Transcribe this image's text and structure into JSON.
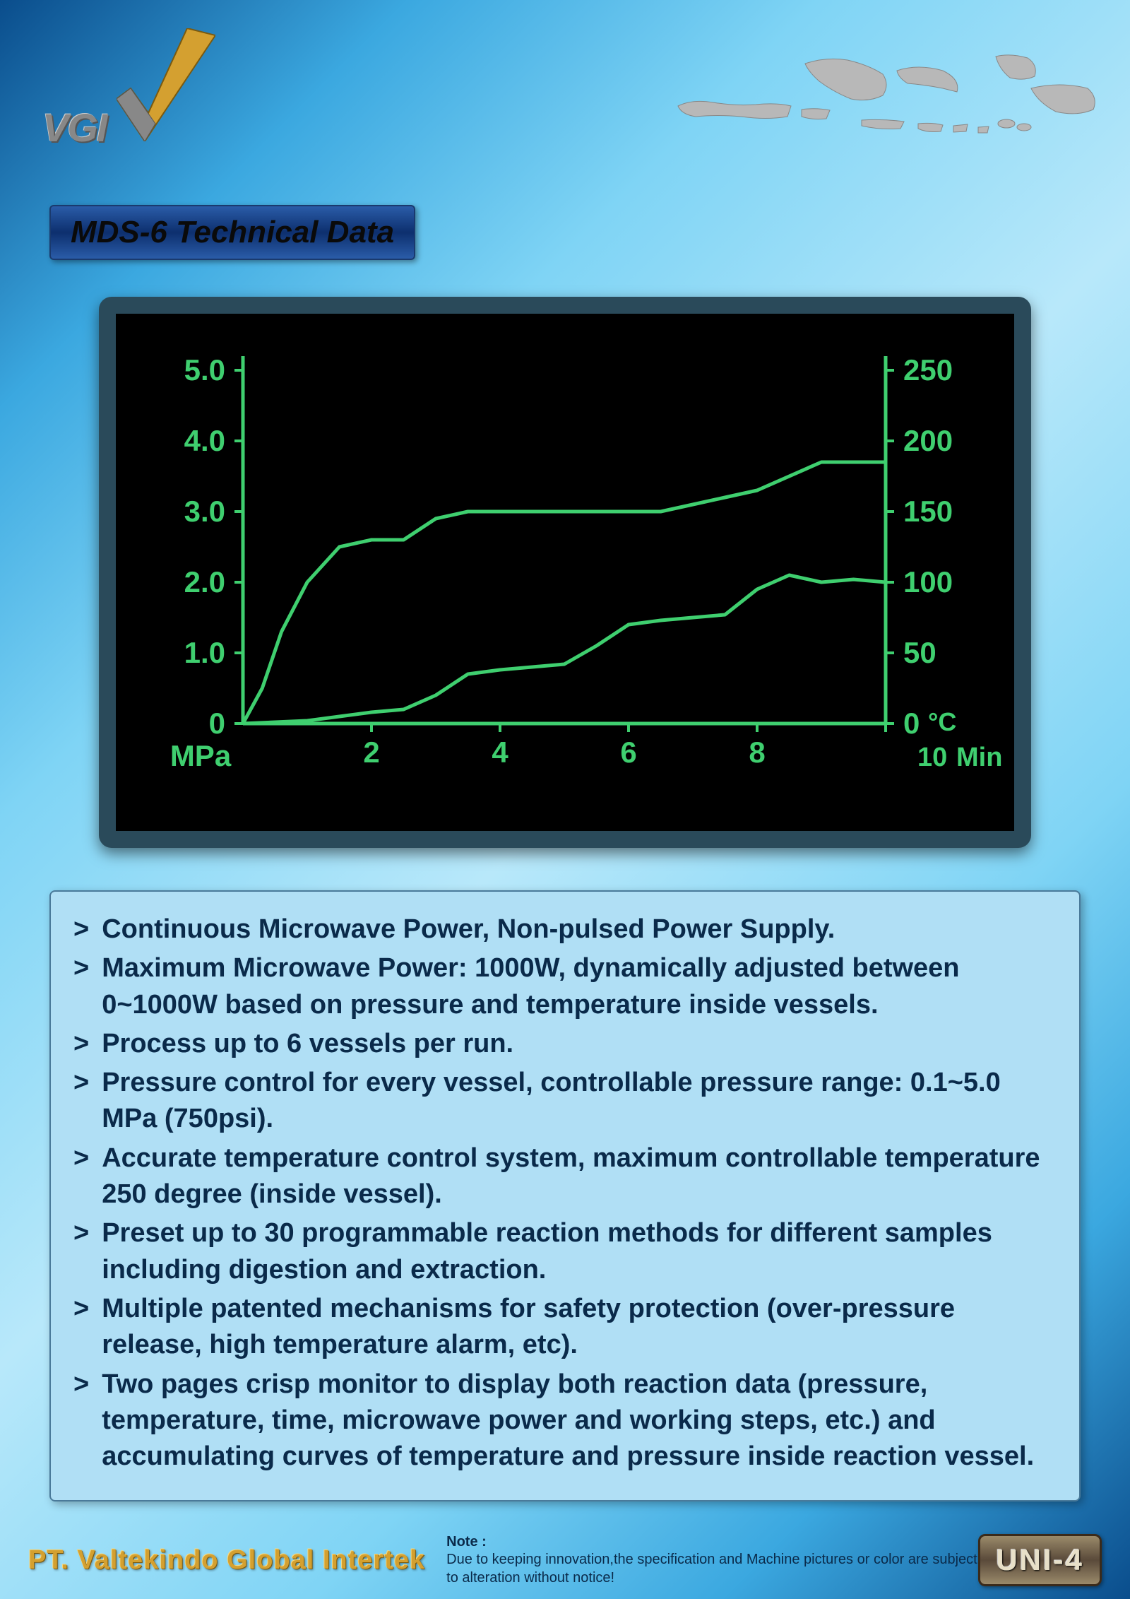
{
  "logo": {
    "text": "VGI"
  },
  "title": "MDS-6 Technical Data",
  "chart": {
    "type": "line",
    "background_color": "#000000",
    "line_color": "#3fcf6f",
    "axis_color": "#3fcf6f",
    "text_color": "#3fcf6f",
    "left_axis": {
      "label": "MPa",
      "ticks": [
        "5.0",
        "4.0",
        "3.0",
        "2.0",
        "1.0",
        "0"
      ]
    },
    "right_axis": {
      "label": "°C",
      "ticks": [
        "250",
        "200",
        "150",
        "100",
        "50",
        "0"
      ]
    },
    "x_axis": {
      "label": "Min",
      "ticks": [
        "2",
        "4",
        "6",
        "8",
        "10"
      ],
      "xlim": [
        0,
        10
      ]
    },
    "ylim_left": [
      0,
      5.0
    ],
    "ylim_right": [
      0,
      250
    ],
    "series": [
      {
        "name": "pressure_mpa",
        "points": [
          [
            0,
            0
          ],
          [
            0.3,
            0.5
          ],
          [
            0.6,
            1.3
          ],
          [
            1.0,
            2.0
          ],
          [
            1.5,
            2.5
          ],
          [
            2.0,
            2.6
          ],
          [
            2.5,
            2.6
          ],
          [
            3.0,
            2.9
          ],
          [
            3.5,
            3.0
          ],
          [
            4.0,
            3.0
          ],
          [
            4.5,
            3.0
          ],
          [
            5.0,
            3.0
          ],
          [
            5.5,
            3.0
          ],
          [
            6.0,
            3.0
          ],
          [
            6.5,
            3.0
          ],
          [
            7.0,
            3.1
          ],
          [
            7.5,
            3.2
          ],
          [
            8.0,
            3.3
          ],
          [
            8.5,
            3.5
          ],
          [
            9.0,
            3.7
          ],
          [
            9.5,
            3.7
          ],
          [
            10.0,
            3.7
          ]
        ]
      },
      {
        "name": "temperature_c",
        "points": [
          [
            0,
            0
          ],
          [
            1.0,
            2
          ],
          [
            1.5,
            5
          ],
          [
            2.0,
            8
          ],
          [
            2.5,
            10
          ],
          [
            3.0,
            20
          ],
          [
            3.5,
            35
          ],
          [
            4.0,
            38
          ],
          [
            4.5,
            40
          ],
          [
            5.0,
            42
          ],
          [
            5.5,
            55
          ],
          [
            6.0,
            70
          ],
          [
            6.5,
            73
          ],
          [
            7.0,
            75
          ],
          [
            7.5,
            77
          ],
          [
            8.0,
            95
          ],
          [
            8.5,
            105
          ],
          [
            9.0,
            100
          ],
          [
            9.5,
            102
          ],
          [
            10.0,
            100
          ]
        ]
      }
    ],
    "line_width": 5,
    "label_fontsize": 42
  },
  "specs": [
    "Continuous Microwave Power, Non-pulsed Power Supply.",
    "Maximum Microwave Power: 1000W, dynamically adjusted between 0~1000W based on pressure and temperature inside vessels.",
    "Process up to 6 vessels per run.",
    "Pressure control for every vessel, controllable pressure range: 0.1~5.0 MPa (750psi).",
    "Accurate temperature control system, maximum controllable temperature 250 degree (inside vessel).",
    "Preset up to 30 programmable reaction methods for different samples including digestion and extraction.",
    "Multiple patented mechanisms for safety protection (over-pressure release, high temperature alarm, etc).",
    "Two pages crisp monitor to display both reaction data (pressure, temperature, time, microwave power and working steps, etc.) and accumulating curves of temperature and pressure inside reaction vessel."
  ],
  "footer": {
    "company": "PT. Valtekindo Global Intertek",
    "note_label": "Note :",
    "note_text": "Due to keeping innovation,the specification and Machine pictures or color are subject to alteration without notice!",
    "badge": "UNI-4"
  }
}
